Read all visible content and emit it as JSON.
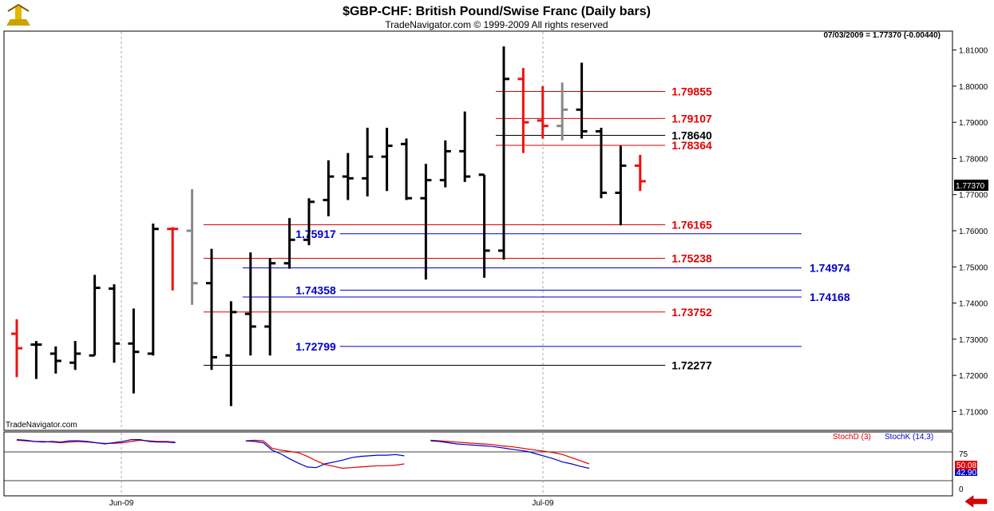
{
  "header": {
    "title": "$GBP-CHF:  British Pound/Swise Franc  (Daily bars)",
    "subtitle": "TradeNavigator.com © 1999-2009 All rights reserved",
    "readout": "07/03/2009 = 1.77370 (-0.00440)",
    "watermark": "TradeNavigator.com",
    "last_price": "1.77370"
  },
  "colors": {
    "up": "#000000",
    "down": "#ee1111",
    "neutral": "#888888",
    "red_level": "#e00000",
    "blue_level": "#0000cc",
    "black_level": "#000000"
  },
  "chart_data": [
    {
      "type": "ohlc",
      "ylim": [
        1.705,
        1.815
      ],
      "y_ticks": [
        "1.71000",
        "1.72000",
        "1.73000",
        "1.74000",
        "1.75000",
        "1.76000",
        "1.77000",
        "1.78000",
        "1.79000",
        "1.80000",
        "1.81000"
      ],
      "x_ticks": [
        "Jun-09",
        "Jul-09"
      ],
      "bars": [
        {
          "o": 1.7315,
          "h": 1.7355,
          "l": 1.7195,
          "c": 1.7275,
          "color": "down"
        },
        {
          "o": 1.7285,
          "h": 1.7295,
          "l": 1.719,
          "c": 1.7285,
          "color": "up"
        },
        {
          "o": 1.726,
          "h": 1.728,
          "l": 1.7205,
          "c": 1.724,
          "color": "up"
        },
        {
          "o": 1.7235,
          "h": 1.7295,
          "l": 1.7215,
          "c": 1.726,
          "color": "up"
        },
        {
          "o": 1.7255,
          "h": 1.7478,
          "l": 1.7255,
          "c": 1.7442,
          "color": "up"
        },
        {
          "o": 1.744,
          "h": 1.7452,
          "l": 1.7235,
          "c": 1.7288,
          "color": "up"
        },
        {
          "o": 1.7288,
          "h": 1.7385,
          "l": 1.715,
          "c": 1.7265,
          "color": "up"
        },
        {
          "o": 1.726,
          "h": 1.762,
          "l": 1.7255,
          "c": 1.7605,
          "color": "up"
        },
        {
          "o": 1.7605,
          "h": 1.761,
          "l": 1.7435,
          "c": 1.7605,
          "color": "down"
        },
        {
          "o": 1.76,
          "h": 1.7715,
          "l": 1.7395,
          "c": 1.7455,
          "color": "neutral"
        },
        {
          "o": 1.7455,
          "h": 1.755,
          "l": 1.7215,
          "c": 1.725,
          "color": "up"
        },
        {
          "o": 1.7255,
          "h": 1.7405,
          "l": 1.7115,
          "c": 1.7375,
          "color": "up"
        },
        {
          "o": 1.737,
          "h": 1.754,
          "l": 1.7255,
          "c": 1.7335,
          "color": "up"
        },
        {
          "o": 1.7335,
          "h": 1.7525,
          "l": 1.7255,
          "c": 1.751,
          "color": "up"
        },
        {
          "o": 1.751,
          "h": 1.7635,
          "l": 1.7495,
          "c": 1.7575,
          "color": "up"
        },
        {
          "o": 1.7575,
          "h": 1.769,
          "l": 1.756,
          "c": 1.768,
          "color": "up"
        },
        {
          "o": 1.7685,
          "h": 1.7795,
          "l": 1.764,
          "c": 1.775,
          "color": "up"
        },
        {
          "o": 1.775,
          "h": 1.7815,
          "l": 1.7685,
          "c": 1.7745,
          "color": "up"
        },
        {
          "o": 1.7745,
          "h": 1.7885,
          "l": 1.7695,
          "c": 1.7805,
          "color": "up"
        },
        {
          "o": 1.7805,
          "h": 1.7885,
          "l": 1.771,
          "c": 1.7835,
          "color": "up"
        },
        {
          "o": 1.784,
          "h": 1.7855,
          "l": 1.7685,
          "c": 1.769,
          "color": "up"
        },
        {
          "o": 1.769,
          "h": 1.7785,
          "l": 1.7465,
          "c": 1.774,
          "color": "up"
        },
        {
          "o": 1.774,
          "h": 1.785,
          "l": 1.772,
          "c": 1.782,
          "color": "up"
        },
        {
          "o": 1.782,
          "h": 1.793,
          "l": 1.7735,
          "c": 1.775,
          "color": "up"
        },
        {
          "o": 1.7755,
          "h": 1.7755,
          "l": 1.747,
          "c": 1.7545,
          "color": "up"
        },
        {
          "o": 1.7545,
          "h": 1.811,
          "l": 1.752,
          "c": 1.802,
          "color": "up"
        },
        {
          "o": 1.802,
          "h": 1.805,
          "l": 1.7815,
          "c": 1.79,
          "color": "down"
        },
        {
          "o": 1.7905,
          "h": 1.8,
          "l": 1.7855,
          "c": 1.789,
          "color": "down"
        },
        {
          "o": 1.789,
          "h": 1.801,
          "l": 1.785,
          "c": 1.7935,
          "color": "neutral"
        },
        {
          "o": 1.7935,
          "h": 1.8065,
          "l": 1.7855,
          "c": 1.7875,
          "color": "up"
        },
        {
          "o": 1.7875,
          "h": 1.7885,
          "l": 1.769,
          "c": 1.7705,
          "color": "up"
        },
        {
          "o": 1.7705,
          "h": 1.7835,
          "l": 1.7615,
          "c": 1.778,
          "color": "up"
        },
        {
          "o": 1.778,
          "h": 1.781,
          "l": 1.771,
          "c": 1.7737,
          "color": "down"
        }
      ],
      "levels": [
        {
          "value": 1.79855,
          "label": "1.79855",
          "color": "red_level",
          "x0": 25,
          "x1": 33,
          "label_side": "right"
        },
        {
          "value": 1.79107,
          "label": "1.79107",
          "color": "red_level",
          "x0": 25,
          "x1": 33,
          "label_side": "right"
        },
        {
          "value": 1.7864,
          "label": "1.78640",
          "color": "black_level",
          "x0": 25,
          "x1": 33,
          "label_side": "right"
        },
        {
          "value": 1.78364,
          "label": "1.78364",
          "color": "red_level",
          "x0": 25,
          "x1": 33,
          "label_side": "right"
        },
        {
          "value": 1.76165,
          "label": "1.76165",
          "color": "red_level",
          "x0": 10,
          "x1": 33,
          "label_side": "right"
        },
        {
          "value": 1.75917,
          "label": "1.75917",
          "color": "blue_level",
          "x0": 17,
          "x1": 40,
          "label_side": "left"
        },
        {
          "value": 1.75238,
          "label": "1.75238",
          "color": "red_level",
          "x0": 10,
          "x1": 33,
          "label_side": "right"
        },
        {
          "value": 1.74974,
          "label": "1.74974",
          "color": "blue_level",
          "x0": 12,
          "x1": 40,
          "label_side": "far"
        },
        {
          "value": 1.74358,
          "label": "1.74358",
          "color": "blue_level",
          "x0": 17,
          "x1": 40,
          "label_side": "left"
        },
        {
          "value": 1.74168,
          "label": "1.74168",
          "color": "blue_level",
          "x0": 12,
          "x1": 40,
          "label_side": "far"
        },
        {
          "value": 1.73752,
          "label": "1.73752",
          "color": "red_level",
          "x0": 10,
          "x1": 33,
          "label_side": "right"
        },
        {
          "value": 1.72799,
          "label": "1.72799",
          "color": "blue_level",
          "x0": 17,
          "x1": 40,
          "label_side": "left"
        },
        {
          "value": 1.72277,
          "label": "1.72277",
          "color": "black_level",
          "x0": 10,
          "x1": 33,
          "label_side": "right"
        }
      ]
    },
    {
      "type": "line",
      "ylim": [
        0,
        100
      ],
      "y_ticks": [
        "75",
        "0"
      ],
      "stochD_label": "StochD (3)",
      "stochK_label": "StochK (14,3)",
      "stochD_value": "50.08",
      "stochK_value": "42.90",
      "stochD": [
        88,
        87,
        86,
        86,
        85,
        84,
        85,
        86,
        85,
        84,
        83,
        83,
        84,
        86,
        88,
        87,
        86,
        86,
        85,
        null,
        null,
        null,
        null,
        null,
        null,
        null,
        87,
        88,
        87,
        75,
        72,
        70,
        68,
        62,
        55,
        49,
        46,
        43,
        44,
        45,
        46,
        47,
        47,
        48,
        50,
        null,
        null,
        88,
        87,
        86,
        85,
        84,
        83,
        82,
        81,
        79,
        78,
        76,
        74,
        72,
        70,
        68,
        65,
        60,
        55,
        50
      ],
      "stochK": [
        89,
        88,
        86,
        85,
        86,
        85,
        87,
        87,
        86,
        84,
        82,
        84,
        86,
        89,
        89,
        86,
        85,
        85,
        84,
        null,
        null,
        null,
        null,
        null,
        null,
        null,
        87,
        86,
        84,
        72,
        66,
        58,
        51,
        45,
        44,
        50,
        53,
        56,
        60,
        62,
        63,
        64,
        64,
        65,
        63,
        null,
        null,
        87,
        86,
        84,
        82,
        81,
        80,
        79,
        78,
        76,
        74,
        72,
        70,
        66,
        62,
        58,
        53,
        50,
        46,
        43
      ]
    }
  ]
}
